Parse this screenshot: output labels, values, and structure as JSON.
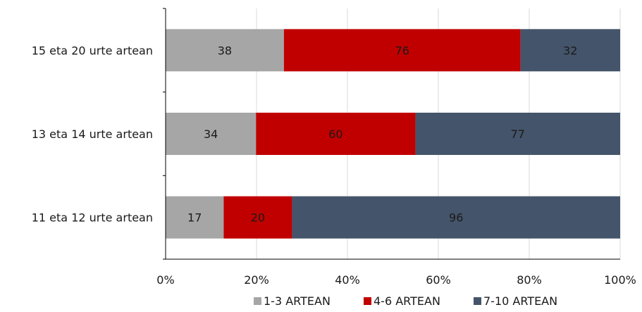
{
  "chart_data": {
    "type": "bar",
    "orientation": "horizontal",
    "stacking": "percent",
    "categories": [
      "15 eta 20 urte artean",
      "13 eta 14 urte artean",
      "11 eta 12 urte artean"
    ],
    "series": [
      {
        "name": "1-3 ARTEAN",
        "values": [
          38,
          34,
          17
        ],
        "color": "#a6a6a6"
      },
      {
        "name": "4-6 ARTEAN",
        "values": [
          76,
          60,
          20
        ],
        "color": "#c00000"
      },
      {
        "name": "7-10 ARTEAN",
        "values": [
          32,
          77,
          96
        ],
        "color": "#44546a"
      }
    ],
    "x_ticks": [
      "0%",
      "20%",
      "40%",
      "60%",
      "80%",
      "100%"
    ],
    "xlim": [
      0,
      100
    ],
    "grid": true,
    "legend_position": "bottom",
    "title": "",
    "xlabel": "",
    "ylabel": ""
  }
}
